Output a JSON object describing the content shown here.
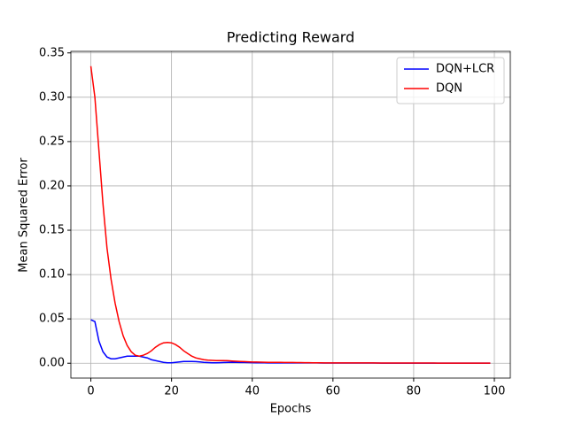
{
  "chart_data": {
    "type": "line",
    "title": "Predicting Reward",
    "xlabel": "Epochs",
    "ylabel": "Mean Squared Error",
    "x": [
      0,
      1,
      2,
      3,
      4,
      5,
      6,
      7,
      8,
      9,
      10,
      11,
      12,
      13,
      14,
      15,
      16,
      17,
      18,
      19,
      20,
      21,
      22,
      23,
      24,
      25,
      26,
      27,
      28,
      29,
      30,
      31,
      32,
      33,
      34,
      35,
      36,
      37,
      38,
      39,
      40,
      41,
      42,
      43,
      44,
      45,
      46,
      47,
      48,
      49,
      50,
      51,
      52,
      53,
      54,
      55,
      56,
      57,
      58,
      59,
      60,
      61,
      62,
      63,
      64,
      65,
      66,
      67,
      68,
      69,
      70,
      71,
      72,
      73,
      74,
      75,
      76,
      77,
      78,
      79,
      80,
      81,
      82,
      83,
      84,
      85,
      86,
      87,
      88,
      89,
      90,
      91,
      92,
      93,
      94,
      95,
      96,
      97,
      98,
      99
    ],
    "series": [
      {
        "name": "DQN+LCR",
        "color": "#0000ff",
        "values": [
          0.049,
          0.047,
          0.025,
          0.013,
          0.007,
          0.005,
          0.005,
          0.006,
          0.007,
          0.008,
          0.008,
          0.008,
          0.008,
          0.007,
          0.006,
          0.004,
          0.003,
          0.002,
          0.001,
          0.0005,
          0.0005,
          0.001,
          0.0015,
          0.002,
          0.002,
          0.002,
          0.0018,
          0.0015,
          0.001,
          0.0007,
          0.0005,
          0.0005,
          0.0006,
          0.0008,
          0.001,
          0.001,
          0.001,
          0.0009,
          0.0008,
          0.0007,
          0.0006,
          0.0005,
          0.0005,
          0.0005,
          0.0004,
          0.0004,
          0.0004,
          0.0004,
          0.0004,
          0.0003,
          0.0003,
          0.0003,
          0.0003,
          0.0003,
          0.0003,
          0.0003,
          0.0003,
          0.0002,
          0.0002,
          0.0002,
          0.0002,
          0.0002,
          0.0002,
          0.0002,
          0.0002,
          0.0002,
          0.0002,
          0.0002,
          0.0002,
          0.0002,
          0.0002,
          0.0002,
          0.0001,
          0.0001,
          0.0001,
          0.0001,
          0.0001,
          0.0001,
          0.0001,
          0.0001,
          0.0001,
          0.0001,
          0.0001,
          0.0001,
          0.0001,
          0.0001,
          0.0001,
          0.0001,
          0.0001,
          0.0001,
          0.0001,
          0.0001,
          0.0001,
          0.0001,
          0.0001,
          0.0001,
          0.0001,
          0.0001,
          0.0001,
          0.0001
        ]
      },
      {
        "name": "DQN",
        "color": "#ff0000",
        "values": [
          0.335,
          0.3,
          0.24,
          0.18,
          0.13,
          0.095,
          0.068,
          0.047,
          0.031,
          0.02,
          0.013,
          0.009,
          0.008,
          0.009,
          0.011,
          0.014,
          0.018,
          0.021,
          0.023,
          0.0235,
          0.023,
          0.021,
          0.018,
          0.014,
          0.011,
          0.008,
          0.006,
          0.005,
          0.004,
          0.0035,
          0.0032,
          0.003,
          0.003,
          0.003,
          0.0028,
          0.0025,
          0.0022,
          0.002,
          0.0018,
          0.0016,
          0.0014,
          0.0013,
          0.0012,
          0.0011,
          0.001,
          0.001,
          0.001,
          0.001,
          0.0009,
          0.0009,
          0.0008,
          0.0007,
          0.0007,
          0.0006,
          0.0006,
          0.0005,
          0.0005,
          0.0005,
          0.0004,
          0.0004,
          0.0004,
          0.0004,
          0.0004,
          0.0003,
          0.0003,
          0.0003,
          0.0003,
          0.0003,
          0.0003,
          0.0003,
          0.0003,
          0.0002,
          0.0002,
          0.0002,
          0.0002,
          0.0002,
          0.0002,
          0.0002,
          0.0002,
          0.0002,
          0.0002,
          0.0002,
          0.0002,
          0.0002,
          0.0002,
          0.0002,
          0.0001,
          0.0001,
          0.0001,
          0.0001,
          0.0001,
          0.0001,
          0.0001,
          0.0001,
          0.0001,
          0.0001,
          0.0001,
          0.0001,
          0.0001,
          0.0001
        ]
      }
    ],
    "xlim": [
      -4.95,
      103.95
    ],
    "xticks": [
      0,
      20,
      40,
      60,
      80,
      100
    ],
    "ylim": [
      -0.01675,
      0.35175
    ],
    "yticks": [
      {
        "value": 0,
        "label": "0.00"
      },
      {
        "value": 0.05,
        "label": "0.05"
      },
      {
        "value": 0.1,
        "label": "0.10"
      },
      {
        "value": 0.15,
        "label": "0.15"
      },
      {
        "value": 0.2,
        "label": "0.20"
      },
      {
        "value": 0.25,
        "label": "0.25"
      },
      {
        "value": 0.3,
        "label": "0.30"
      },
      {
        "value": 0.35,
        "label": "0.35"
      }
    ],
    "grid": true,
    "legend": "upper right"
  }
}
